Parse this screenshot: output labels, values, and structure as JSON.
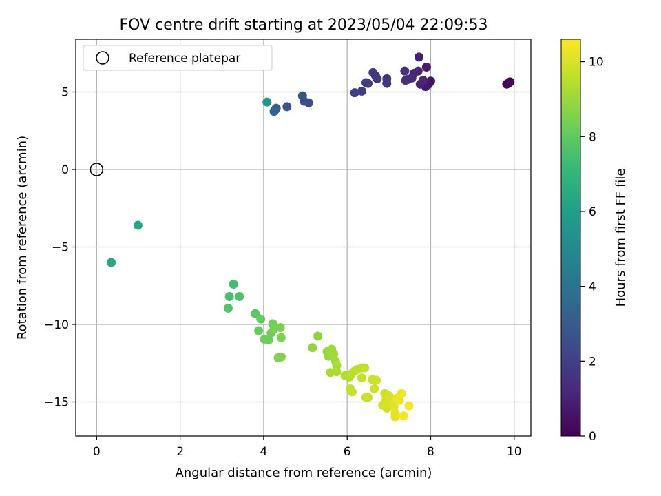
{
  "chart_data": {
    "type": "scatter",
    "title": "FOV centre drift starting at 2023/05/04 22:09:53",
    "xlabel": "Angular distance from reference (arcmin)",
    "ylabel": "Rotation from reference (arcmin)",
    "xlim": [
      -0.5,
      10.4
    ],
    "ylim": [
      -17.2,
      8.4
    ],
    "xticks": [
      0,
      2,
      4,
      6,
      8,
      10
    ],
    "yticks": [
      -15,
      -10,
      -5,
      0,
      5
    ],
    "grid": true,
    "legend": {
      "placement": "top-left",
      "entries": [
        "Reference platepar"
      ]
    },
    "reference_point": {
      "x": 0,
      "y": 0
    },
    "colorbar": {
      "label": "Hours from first FF file",
      "colormap": "viridis",
      "range": [
        0,
        10.6
      ],
      "ticks": [
        0,
        2,
        4,
        6,
        8,
        10
      ]
    },
    "points": [
      {
        "x": 9.88,
        "y": 5.6,
        "c": 0.05
      },
      {
        "x": 9.85,
        "y": 5.55,
        "c": 0.1
      },
      {
        "x": 9.9,
        "y": 5.65,
        "c": 0.15
      },
      {
        "x": 9.82,
        "y": 5.5,
        "c": 0.2
      },
      {
        "x": 8.0,
        "y": 5.7,
        "c": 0.5
      },
      {
        "x": 7.95,
        "y": 5.5,
        "c": 0.6
      },
      {
        "x": 7.88,
        "y": 5.35,
        "c": 0.7
      },
      {
        "x": 7.9,
        "y": 6.6,
        "c": 0.8
      },
      {
        "x": 7.72,
        "y": 7.25,
        "c": 0.9
      },
      {
        "x": 7.75,
        "y": 5.5,
        "c": 1.0
      },
      {
        "x": 7.7,
        "y": 6.35,
        "c": 1.1
      },
      {
        "x": 7.82,
        "y": 5.75,
        "c": 1.15
      },
      {
        "x": 7.6,
        "y": 6.2,
        "c": 1.2
      },
      {
        "x": 7.55,
        "y": 5.9,
        "c": 1.3
      },
      {
        "x": 7.45,
        "y": 5.8,
        "c": 1.35
      },
      {
        "x": 7.4,
        "y": 5.75,
        "c": 1.4
      },
      {
        "x": 7.38,
        "y": 6.35,
        "c": 1.45
      },
      {
        "x": 6.95,
        "y": 5.55,
        "c": 1.6
      },
      {
        "x": 6.95,
        "y": 5.85,
        "c": 1.65
      },
      {
        "x": 6.72,
        "y": 5.85,
        "c": 1.7
      },
      {
        "x": 6.62,
        "y": 6.25,
        "c": 1.75
      },
      {
        "x": 6.68,
        "y": 6.05,
        "c": 1.8
      },
      {
        "x": 6.5,
        "y": 5.55,
        "c": 1.85
      },
      {
        "x": 6.45,
        "y": 5.6,
        "c": 1.9
      },
      {
        "x": 6.35,
        "y": 5.05,
        "c": 1.95
      },
      {
        "x": 6.18,
        "y": 4.95,
        "c": 2.0
      },
      {
        "x": 5.08,
        "y": 4.3,
        "c": 2.4
      },
      {
        "x": 4.97,
        "y": 4.4,
        "c": 2.5
      },
      {
        "x": 4.93,
        "y": 4.75,
        "c": 2.6
      },
      {
        "x": 4.56,
        "y": 4.05,
        "c": 2.8
      },
      {
        "x": 4.3,
        "y": 3.95,
        "c": 3.0
      },
      {
        "x": 4.25,
        "y": 3.75,
        "c": 3.2
      },
      {
        "x": 4.28,
        "y": 3.85,
        "c": 3.3
      },
      {
        "x": 4.08,
        "y": 4.35,
        "c": 5.7
      },
      {
        "x": 0.99,
        "y": -3.6,
        "c": 6.2
      },
      {
        "x": 0.35,
        "y": -6.0,
        "c": 6.4
      },
      {
        "x": 3.28,
        "y": -7.4,
        "c": 7.4
      },
      {
        "x": 3.18,
        "y": -8.2,
        "c": 7.5
      },
      {
        "x": 3.42,
        "y": -8.2,
        "c": 7.6
      },
      {
        "x": 3.15,
        "y": -8.95,
        "c": 7.7
      },
      {
        "x": 3.8,
        "y": -9.3,
        "c": 7.9
      },
      {
        "x": 3.93,
        "y": -9.65,
        "c": 8.0
      },
      {
        "x": 3.88,
        "y": -10.4,
        "c": 8.1
      },
      {
        "x": 4.02,
        "y": -10.95,
        "c": 8.2
      },
      {
        "x": 4.12,
        "y": -11.0,
        "c": 8.25
      },
      {
        "x": 4.18,
        "y": -10.55,
        "c": 8.3
      },
      {
        "x": 4.22,
        "y": -9.95,
        "c": 8.35
      },
      {
        "x": 4.25,
        "y": -10.3,
        "c": 8.4
      },
      {
        "x": 4.4,
        "y": -10.2,
        "c": 8.45
      },
      {
        "x": 4.42,
        "y": -10.85,
        "c": 8.5
      },
      {
        "x": 4.35,
        "y": -12.15,
        "c": 8.55
      },
      {
        "x": 4.42,
        "y": -12.1,
        "c": 8.6
      },
      {
        "x": 5.3,
        "y": -10.75,
        "c": 8.8
      },
      {
        "x": 5.17,
        "y": -11.5,
        "c": 8.85
      },
      {
        "x": 5.52,
        "y": -11.75,
        "c": 8.9
      },
      {
        "x": 5.55,
        "y": -12.05,
        "c": 8.95
      },
      {
        "x": 5.6,
        "y": -12.0,
        "c": 9.0
      },
      {
        "x": 5.63,
        "y": -11.6,
        "c": 9.05
      },
      {
        "x": 5.68,
        "y": -11.9,
        "c": 9.1
      },
      {
        "x": 5.72,
        "y": -12.35,
        "c": 9.15
      },
      {
        "x": 5.75,
        "y": -12.65,
        "c": 9.2
      },
      {
        "x": 5.6,
        "y": -13.1,
        "c": 9.25
      },
      {
        "x": 5.75,
        "y": -13.05,
        "c": 9.3
      },
      {
        "x": 5.95,
        "y": -13.3,
        "c": 9.35
      },
      {
        "x": 6.05,
        "y": -13.4,
        "c": 9.4
      },
      {
        "x": 6.1,
        "y": -13.2,
        "c": 9.45
      },
      {
        "x": 6.18,
        "y": -13.0,
        "c": 9.5
      },
      {
        "x": 6.25,
        "y": -12.9,
        "c": 9.55
      },
      {
        "x": 6.35,
        "y": -12.8,
        "c": 9.6
      },
      {
        "x": 6.42,
        "y": -12.8,
        "c": 9.62
      },
      {
        "x": 6.07,
        "y": -14.15,
        "c": 9.65
      },
      {
        "x": 6.12,
        "y": -14.35,
        "c": 9.68
      },
      {
        "x": 6.35,
        "y": -13.45,
        "c": 9.7
      },
      {
        "x": 6.45,
        "y": -14.7,
        "c": 9.72
      },
      {
        "x": 6.5,
        "y": -14.7,
        "c": 9.75
      },
      {
        "x": 6.6,
        "y": -13.55,
        "c": 9.78
      },
      {
        "x": 6.65,
        "y": -14.15,
        "c": 9.8
      },
      {
        "x": 6.7,
        "y": -13.6,
        "c": 9.82
      },
      {
        "x": 6.85,
        "y": -15.2,
        "c": 9.85
      },
      {
        "x": 6.9,
        "y": -14.45,
        "c": 9.88
      },
      {
        "x": 6.92,
        "y": -14.9,
        "c": 9.9
      },
      {
        "x": 6.95,
        "y": -15.4,
        "c": 9.92
      },
      {
        "x": 7.0,
        "y": -14.6,
        "c": 9.95
      },
      {
        "x": 7.05,
        "y": -15.0,
        "c": 9.98
      },
      {
        "x": 7.08,
        "y": -14.8,
        "c": 10.0
      },
      {
        "x": 7.1,
        "y": -15.1,
        "c": 10.05
      },
      {
        "x": 7.12,
        "y": -15.3,
        "c": 10.1
      },
      {
        "x": 7.15,
        "y": -15.95,
        "c": 10.15
      },
      {
        "x": 7.15,
        "y": -15.7,
        "c": 10.2
      },
      {
        "x": 7.2,
        "y": -14.75,
        "c": 10.25
      },
      {
        "x": 7.25,
        "y": -14.9,
        "c": 10.3
      },
      {
        "x": 7.3,
        "y": -14.45,
        "c": 10.35
      },
      {
        "x": 7.35,
        "y": -15.9,
        "c": 10.4
      },
      {
        "x": 7.48,
        "y": -15.25,
        "c": 10.5
      }
    ]
  }
}
